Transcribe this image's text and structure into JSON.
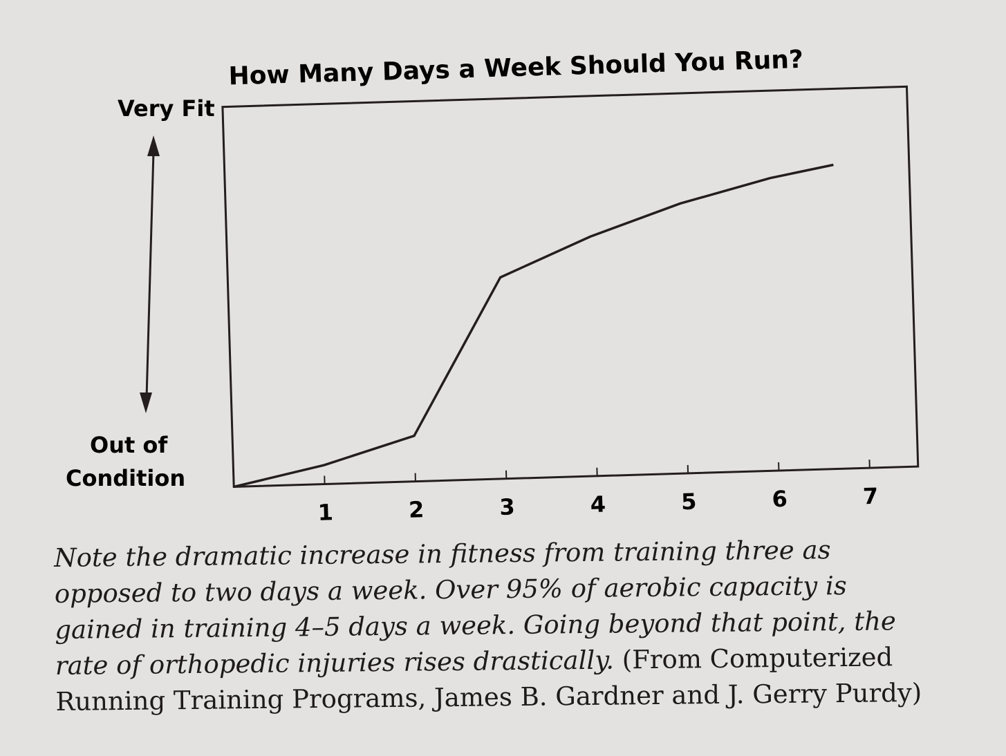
{
  "chart_data": {
    "type": "line",
    "title": "How Many Days a Week Should You Run?",
    "xlabel": "",
    "ylabel_top": "Very Fit",
    "ylabel_bottom": [
      "Out of",
      "Condition"
    ],
    "x_ticks": [
      "1",
      "2",
      "3",
      "4",
      "5",
      "6",
      "7"
    ],
    "xlim": [
      0,
      7
    ],
    "ylim": [
      0,
      100
    ],
    "grid": false,
    "series": [
      {
        "name": "Fitness",
        "x": [
          0,
          1,
          2,
          3,
          4,
          5,
          6,
          6.7
        ],
        "y": [
          0,
          5,
          12,
          53,
          63,
          71,
          77,
          80
        ]
      }
    ],
    "line_color": "#241e1e"
  },
  "caption": {
    "italic": "Note the dramatic increase in fitness from training three as opposed to two days a week. Over 95% of aerobic capacity is gained in training 4–5 days a week. Going beyond that point, the rate of orthopedic injuries rises drastically.",
    "roman": "(From Computerized Running Training Programs, James B. Gardner and J. Gerry Purdy)"
  }
}
